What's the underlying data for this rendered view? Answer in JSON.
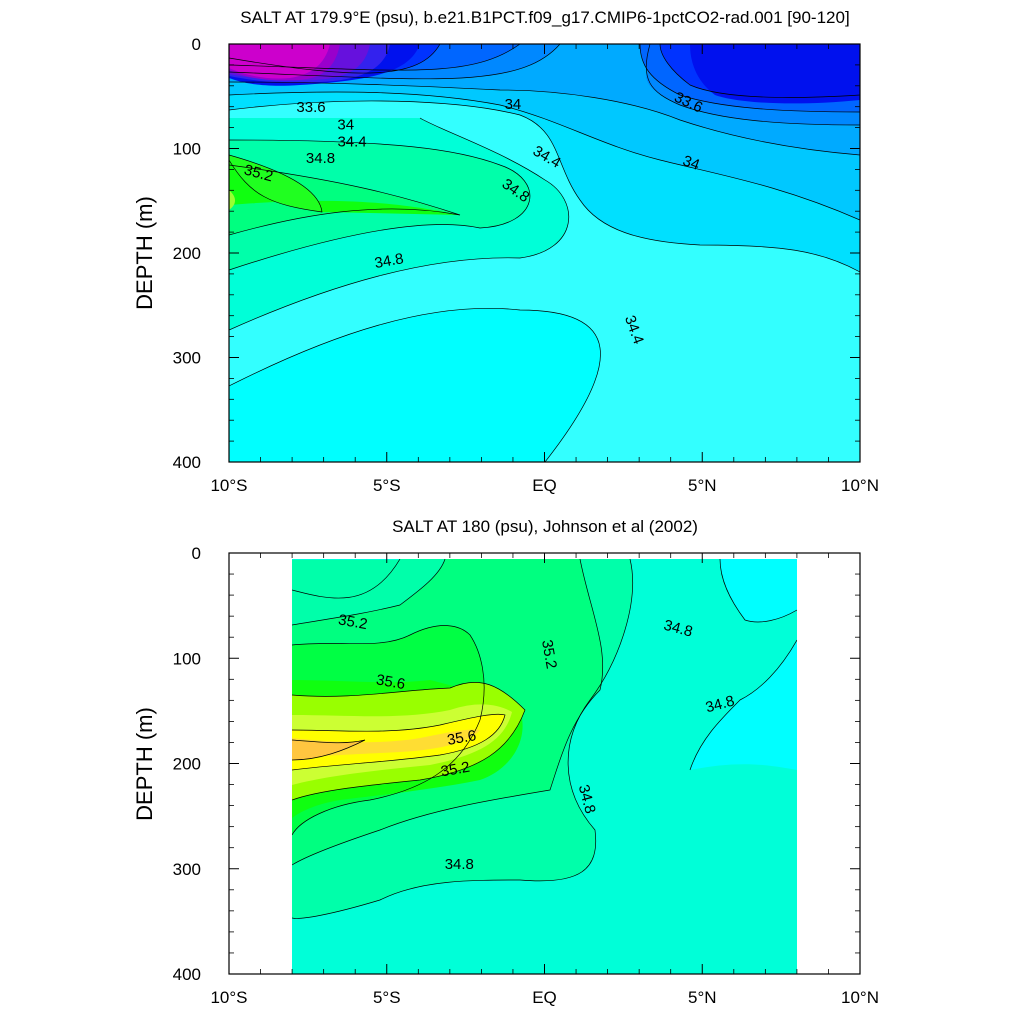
{
  "chart_data": [
    {
      "type": "contour",
      "title": "SALT AT 179.9°E (psu), b.e21.B1PCT.f09_g17.CMIP6-1pctCO2-rad.001 [90-120]",
      "ylabel": "DEPTH (m)",
      "xlim": [
        -10,
        10
      ],
      "ylim": [
        0,
        400
      ],
      "y_inverted": true,
      "x_ticks": [
        -10,
        -5,
        0,
        5,
        10
      ],
      "x_tick_labels": [
        "10°S",
        "5°S",
        "EQ",
        "5°N",
        "10°N"
      ],
      "y_ticks": [
        0,
        100,
        200,
        300,
        400
      ],
      "y_tick_labels": [
        "0",
        "100",
        "200",
        "300",
        "400"
      ],
      "contour_labels": [
        {
          "text": "33.6",
          "x": -7.4,
          "y": 65,
          "angle": 0
        },
        {
          "text": "34",
          "x": -6.3,
          "y": 82,
          "angle": 0
        },
        {
          "text": "34.4",
          "x": -6.1,
          "y": 98,
          "angle": 0
        },
        {
          "text": "34.8",
          "x": -7.1,
          "y": 114,
          "angle": 0
        },
        {
          "text": "35.2",
          "x": -9.1,
          "y": 128,
          "angle": 15
        },
        {
          "text": "34",
          "x": -1.0,
          "y": 62,
          "angle": 0
        },
        {
          "text": "34.4",
          "x": 0.0,
          "y": 112,
          "angle": 30
        },
        {
          "text": "34.8",
          "x": -1.0,
          "y": 144,
          "angle": 35
        },
        {
          "text": "34.8",
          "x": -4.9,
          "y": 212,
          "angle": -10
        },
        {
          "text": "34.4",
          "x": 2.7,
          "y": 275,
          "angle": 70
        },
        {
          "text": "33.6",
          "x": 4.5,
          "y": 60,
          "angle": 25
        },
        {
          "text": "34",
          "x": 4.6,
          "y": 118,
          "angle": 20
        }
      ]
    },
    {
      "type": "contour",
      "title": "SALT AT 180 (psu), Johnson et al (2002)",
      "ylabel": "DEPTH (m)",
      "xlim": [
        -10,
        10
      ],
      "ylim": [
        0,
        400
      ],
      "y_inverted": true,
      "x_ticks": [
        -10,
        -5,
        0,
        5,
        10
      ],
      "x_tick_labels": [
        "10°S",
        "5°S",
        "EQ",
        "5°N",
        "10°N"
      ],
      "y_ticks": [
        0,
        100,
        200,
        300,
        400
      ],
      "y_tick_labels": [
        "0",
        "100",
        "200",
        "300",
        "400"
      ],
      "data_extent_x": [
        -8,
        8
      ],
      "contour_labels": [
        {
          "text": "35.2",
          "x": -6.1,
          "y": 70,
          "angle": 10
        },
        {
          "text": "35.6",
          "x": -4.9,
          "y": 127,
          "angle": 10
        },
        {
          "text": "35.2",
          "x": 0.0,
          "y": 97,
          "angle": 80
        },
        {
          "text": "35.6",
          "x": -2.6,
          "y": 180,
          "angle": -10
        },
        {
          "text": "35.2",
          "x": -2.8,
          "y": 210,
          "angle": -10
        },
        {
          "text": "34.8",
          "x": 4.2,
          "y": 76,
          "angle": 15
        },
        {
          "text": "34.8",
          "x": 5.6,
          "y": 148,
          "angle": -15
        },
        {
          "text": "34.8",
          "x": 1.2,
          "y": 235,
          "angle": 75
        },
        {
          "text": "34.8",
          "x": -2.7,
          "y": 300,
          "angle": 0
        }
      ]
    }
  ]
}
